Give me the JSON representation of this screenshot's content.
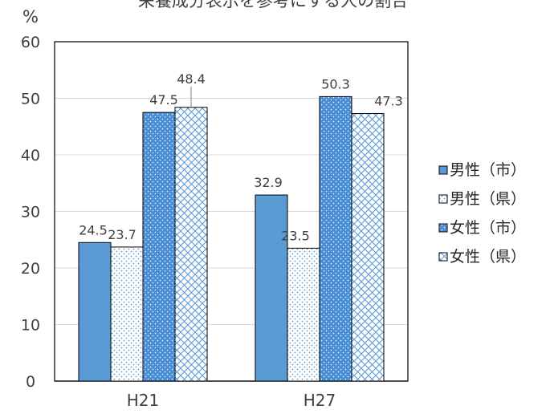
{
  "chart_data": {
    "type": "bar",
    "title": "栄養成分表示を参考にする人の割合",
    "ylabel": "%",
    "xlabel": "",
    "ylim": [
      0,
      60
    ],
    "yticks": [
      0,
      10,
      20,
      30,
      40,
      50,
      60
    ],
    "categories": [
      "H21",
      "H27"
    ],
    "grid": "horizontal",
    "legend_position": "right",
    "series": [
      {
        "name": "男性（市）",
        "values": [
          24.5,
          32.9
        ],
        "color": "#5b9bd5",
        "pattern": "solid"
      },
      {
        "name": "男性（県）",
        "values": [
          23.7,
          23.5
        ],
        "color": "#5b9bd5",
        "pattern": "dots"
      },
      {
        "name": "女性（市）",
        "values": [
          47.5,
          50.3
        ],
        "color": "#4a8fd6",
        "pattern": "dotted-solid"
      },
      {
        "name": "女性（県）",
        "values": [
          48.4,
          47.3
        ],
        "color": "#5b9bd5",
        "pattern": "crosshatch"
      }
    ],
    "data_labels": [
      [
        "24.5",
        "32.9"
      ],
      [
        "23.7",
        "23.5"
      ],
      [
        "47.5",
        "50.3"
      ],
      [
        "48.4",
        "47.3"
      ]
    ]
  }
}
